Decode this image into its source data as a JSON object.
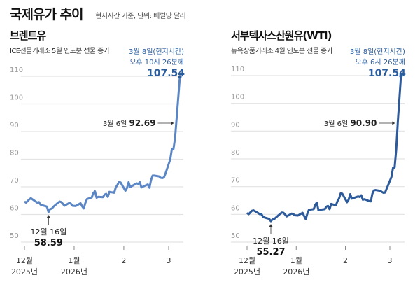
{
  "header": {
    "title": "국제유가 추이",
    "subtitle": "현지시간 기준, 단위: 배럴당 달러"
  },
  "colors": {
    "brent_line": "#5b86c5",
    "wti_line": "#2c5a9a",
    "highlight": "#2a5d9e",
    "grid": "#e3e3e3"
  },
  "chart_data": [
    {
      "type": "line",
      "title": "브렌트유",
      "subtitle": "ICE선물거래소 5월 인도분 선물 종가",
      "ylim": [
        50,
        110
      ],
      "yticks": [
        50,
        60,
        70,
        80,
        90,
        100,
        110
      ],
      "grid": true,
      "xticks": [
        {
          "date": "2025-12-01",
          "label": "12월",
          "label2": "2025년"
        },
        {
          "date": "2026-01-01",
          "label": "1월",
          "label2": "2026년"
        },
        {
          "date": "2026-02-01",
          "label": "2",
          "label2": ""
        },
        {
          "date": "2026-03-01",
          "label": "3",
          "label2": ""
        }
      ],
      "annotations": {
        "end": {
          "line1": "3월 8일(현지시간)",
          "line2": "오후 10시 26분께",
          "value": "107.54"
        },
        "mar6": {
          "label": "3월 6일",
          "value": "92.69"
        },
        "low": {
          "label": "12월 16일",
          "value": "58.59"
        }
      },
      "dates": [
        "2025-12-01",
        "2025-12-02",
        "2025-12-03",
        "2025-12-04",
        "2025-12-05",
        "2025-12-08",
        "2025-12-09",
        "2025-12-10",
        "2025-12-11",
        "2025-12-12",
        "2025-12-15",
        "2025-12-16",
        "2025-12-17",
        "2025-12-18",
        "2025-12-19",
        "2025-12-22",
        "2025-12-23",
        "2025-12-24",
        "2025-12-26",
        "2025-12-29",
        "2025-12-30",
        "2025-12-31",
        "2026-01-02",
        "2026-01-05",
        "2026-01-06",
        "2026-01-07",
        "2026-01-08",
        "2026-01-09",
        "2026-01-12",
        "2026-01-13",
        "2026-01-14",
        "2026-01-15",
        "2026-01-16",
        "2026-01-19",
        "2026-01-20",
        "2026-01-21",
        "2026-01-22",
        "2026-01-23",
        "2026-01-26",
        "2026-01-27",
        "2026-01-28",
        "2026-01-29",
        "2026-01-30",
        "2026-02-02",
        "2026-02-03",
        "2026-02-04",
        "2026-02-05",
        "2026-02-06",
        "2026-02-09",
        "2026-02-10",
        "2026-02-11",
        "2026-02-12",
        "2026-02-13",
        "2026-02-16",
        "2026-02-17",
        "2026-02-18",
        "2026-02-19",
        "2026-02-20",
        "2026-02-23",
        "2026-02-24",
        "2026-02-25",
        "2026-02-26",
        "2026-02-27",
        "2026-03-02",
        "2026-03-03",
        "2026-03-04",
        "2026-03-05",
        "2026-03-06",
        "2026-03-08"
      ],
      "values": [
        62.4,
        62.0,
        62.6,
        63.2,
        63.6,
        62.4,
        62.0,
        62.2,
        61.3,
        61.1,
        60.6,
        58.59,
        59.7,
        59.8,
        60.5,
        62.0,
        62.4,
        62.2,
        60.9,
        61.9,
        61.6,
        60.9,
        60.8,
        61.8,
        60.7,
        59.9,
        61.9,
        63.3,
        63.9,
        65.5,
        66.1,
        63.8,
        64.1,
        64.0,
        64.9,
        65.2,
        64.1,
        65.9,
        65.6,
        67.5,
        68.4,
        69.5,
        69.3,
        66.3,
        67.3,
        69.4,
        67.6,
        68.0,
        69.0,
        68.8,
        69.4,
        67.5,
        67.8,
        68.6,
        67.4,
        70.2,
        71.8,
        71.8,
        71.5,
        71.0,
        70.9,
        71.1,
        72.5,
        77.7,
        81.4,
        81.4,
        85.4,
        92.69,
        107.54
      ]
    },
    {
      "type": "line",
      "title": "서부텍사스산원유(WTI)",
      "subtitle": "뉴욕상품거래소 4월 인도분 선물 종가",
      "ylim": [
        50,
        110
      ],
      "yticks": [
        50,
        60,
        70,
        80,
        90,
        100,
        110
      ],
      "grid": true,
      "xticks": [
        {
          "date": "2025-12-01",
          "label": "12월",
          "label2": "2025년"
        },
        {
          "date": "2026-01-01",
          "label": "1월",
          "label2": "2026년"
        },
        {
          "date": "2026-02-01",
          "label": "2",
          "label2": ""
        },
        {
          "date": "2026-03-01",
          "label": "3",
          "label2": ""
        }
      ],
      "annotations": {
        "end": {
          "line1": "3월 8일(현지시간)",
          "line2": "오후 6시 26분께",
          "value": "107.54"
        },
        "mar6": {
          "label": "3월 6일",
          "value": "90.90"
        },
        "low": {
          "label": "12월 16일",
          "value": "55.27"
        }
      },
      "dates": [
        "2025-12-01",
        "2025-12-02",
        "2025-12-03",
        "2025-12-04",
        "2025-12-05",
        "2025-12-08",
        "2025-12-09",
        "2025-12-10",
        "2025-12-11",
        "2025-12-12",
        "2025-12-15",
        "2025-12-16",
        "2025-12-17",
        "2025-12-18",
        "2025-12-19",
        "2025-12-22",
        "2025-12-23",
        "2025-12-24",
        "2025-12-26",
        "2025-12-29",
        "2025-12-30",
        "2025-12-31",
        "2026-01-02",
        "2026-01-05",
        "2026-01-06",
        "2026-01-07",
        "2026-01-08",
        "2026-01-09",
        "2026-01-12",
        "2026-01-13",
        "2026-01-14",
        "2026-01-15",
        "2026-01-16",
        "2026-01-19",
        "2026-01-20",
        "2026-01-21",
        "2026-01-22",
        "2026-01-23",
        "2026-01-26",
        "2026-01-27",
        "2026-01-28",
        "2026-01-29",
        "2026-01-30",
        "2026-02-02",
        "2026-02-03",
        "2026-02-04",
        "2026-02-05",
        "2026-02-06",
        "2026-02-09",
        "2026-02-10",
        "2026-02-11",
        "2026-02-12",
        "2026-02-13",
        "2026-02-16",
        "2026-02-17",
        "2026-02-18",
        "2026-02-19",
        "2026-02-20",
        "2026-02-23",
        "2026-02-24",
        "2026-02-25",
        "2026-02-26",
        "2026-02-27",
        "2026-03-02",
        "2026-03-03",
        "2026-03-04",
        "2026-03-05",
        "2026-03-06",
        "2026-03-08"
      ],
      "values": [
        58.3,
        57.8,
        58.4,
        59.0,
        59.2,
        58.2,
        57.8,
        57.9,
        56.9,
        56.6,
        56.1,
        55.27,
        55.9,
        56.0,
        56.5,
        58.0,
        58.4,
        58.3,
        57.0,
        58.0,
        57.9,
        57.4,
        57.3,
        58.3,
        57.1,
        56.0,
        58.0,
        59.4,
        59.6,
        61.2,
        62.0,
        59.2,
        59.4,
        59.6,
        60.5,
        60.8,
        59.6,
        61.5,
        61.0,
        62.5,
        63.5,
        65.3,
        65.2,
        62.1,
        63.0,
        65.0,
        63.4,
        63.6,
        64.2,
        64.0,
        64.6,
        63.0,
        63.2,
        62.5,
        62.4,
        65.2,
        66.4,
        66.5,
        66.2,
        65.8,
        65.5,
        65.6,
        67.0,
        71.2,
        74.5,
        74.6,
        81.0,
        90.9,
        107.54
      ]
    }
  ]
}
